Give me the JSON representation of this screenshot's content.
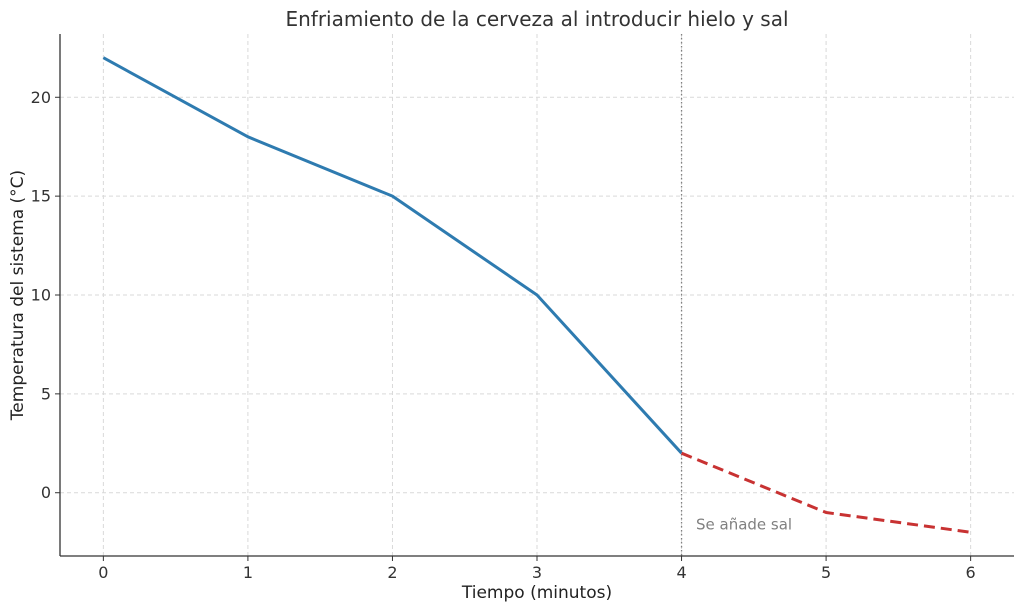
{
  "chart_data": {
    "type": "line",
    "title": "Enfriamiento de la cerveza al introducir hielo y sal",
    "xlabel": "Tiempo (minutos)",
    "ylabel": "Temperatura del sistema (°C)",
    "xlim": [
      -0.3,
      6.3
    ],
    "ylim": [
      -3.2,
      23.2
    ],
    "x_ticks": [
      0,
      1,
      2,
      3,
      4,
      5,
      6
    ],
    "y_ticks": [
      0,
      5,
      10,
      15,
      20
    ],
    "grid": true,
    "series": [
      {
        "style": "solid",
        "color": "#2e7bb0",
        "x": [
          0,
          1,
          2,
          3,
          4
        ],
        "y": [
          22,
          18,
          15,
          10,
          2
        ]
      },
      {
        "style": "dashed",
        "color": "#c83232",
        "x": [
          4,
          5,
          6
        ],
        "y": [
          2,
          -1,
          -2
        ]
      }
    ],
    "vertical_line": {
      "x": 4,
      "color": "#808080",
      "style": "dotted"
    },
    "annotation": {
      "text": "Se añade sal",
      "x": 4.1,
      "y": -1.6
    }
  }
}
